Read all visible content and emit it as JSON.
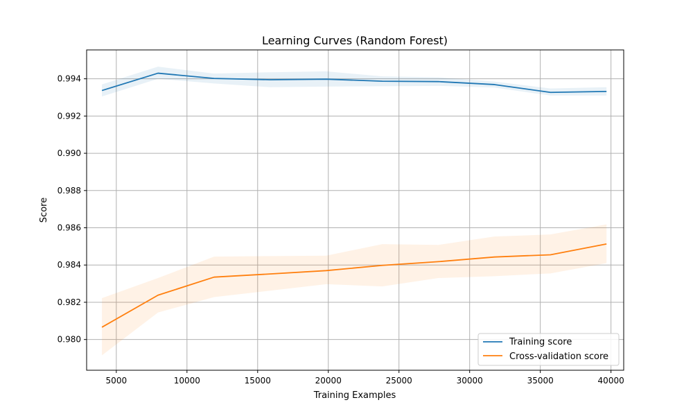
{
  "chart_data": {
    "type": "line",
    "title": "Learning Curves (Random Forest)",
    "xlabel": "Training Examples",
    "ylabel": "Score",
    "xlim": [
      2900,
      40900
    ],
    "ylim": [
      0.97835,
      0.99555
    ],
    "x_ticks": [
      5000,
      10000,
      15000,
      20000,
      25000,
      30000,
      35000,
      40000
    ],
    "x_tick_labels": [
      "5000",
      "10000",
      "15000",
      "20000",
      "25000",
      "30000",
      "35000",
      "40000"
    ],
    "y_ticks": [
      0.98,
      0.982,
      0.984,
      0.986,
      0.988,
      0.99,
      0.992,
      0.994
    ],
    "y_tick_labels": [
      "0.980",
      "0.982",
      "0.984",
      "0.986",
      "0.988",
      "0.990",
      "0.992",
      "0.994"
    ],
    "grid": true,
    "legend_position": "lower-right",
    "x": [
      3983,
      7950,
      11917,
      15883,
      19850,
      23817,
      27783,
      31750,
      35717,
      39683
    ],
    "series": [
      {
        "name": "Training score",
        "color": "#1f77b4",
        "values": [
          0.99337,
          0.9943,
          0.99402,
          0.99395,
          0.99398,
          0.99387,
          0.99385,
          0.99369,
          0.99327,
          0.99332
        ],
        "band_upper": [
          0.9937,
          0.99465,
          0.99428,
          0.99435,
          0.9944,
          0.99413,
          0.99408,
          0.99385,
          0.99348,
          0.99355
        ],
        "band_lower": [
          0.99305,
          0.994,
          0.99375,
          0.99355,
          0.99358,
          0.9936,
          0.99362,
          0.99353,
          0.9931,
          0.9931
        ]
      },
      {
        "name": "Cross-validation score",
        "color": "#ff7f0e",
        "values": [
          0.98066,
          0.98238,
          0.98335,
          0.98352,
          0.9837,
          0.98398,
          0.98418,
          0.98443,
          0.98455,
          0.98513
        ],
        "band_upper": [
          0.98222,
          0.9833,
          0.98445,
          0.98448,
          0.9845,
          0.98512,
          0.98508,
          0.98553,
          0.98564,
          0.98618
        ],
        "band_lower": [
          0.97915,
          0.98145,
          0.98228,
          0.98262,
          0.98297,
          0.98285,
          0.9833,
          0.9834,
          0.98355,
          0.9841
        ]
      }
    ]
  }
}
